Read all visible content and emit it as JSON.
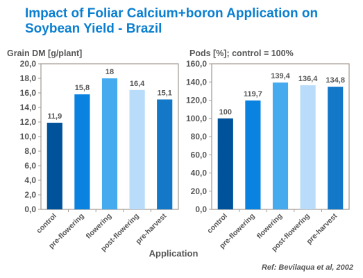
{
  "title_line1": "Impact of Foliar Calcium+boron Application on",
  "title_line2": "Soybean Yield - Brazil",
  "x_axis_title": "Application",
  "reference": "Ref: Bevilaqua et al, 2002",
  "colors": {
    "title": "#0a7fd0",
    "axis_text": "#555555",
    "frame": "#a09890",
    "bars": [
      "#00529b",
      "#0a82e0",
      "#45aaee",
      "#b8dcfa",
      "#1478c8"
    ]
  },
  "chart_data": [
    {
      "type": "bar",
      "title": "Grain DM [g/plant]",
      "categories": [
        "control",
        "pre-flowering",
        "flowering",
        "post-flowering",
        "pre-harvest"
      ],
      "values": [
        11.9,
        15.8,
        18,
        16.4,
        15.1
      ],
      "value_labels": [
        "11,9",
        "15,8",
        "18",
        "16,4",
        "15,1"
      ],
      "ylim": [
        0,
        20
      ],
      "yticks": [
        "0,0",
        "2,0",
        "4,0",
        "6,0",
        "8,0",
        "10,0",
        "12,0",
        "14,0",
        "16,0",
        "18,0",
        "20,0"
      ],
      "ytick_values": [
        0,
        2,
        4,
        6,
        8,
        10,
        12,
        14,
        16,
        18,
        20
      ],
      "xlabel": "Application",
      "grid": false,
      "legend": "none"
    },
    {
      "type": "bar",
      "title": "Pods [%]; control = 100%",
      "categories": [
        "control",
        "pre-flowering",
        "flowering",
        "post-flowering",
        "pre-harvest"
      ],
      "values": [
        100,
        119.7,
        139.4,
        136.4,
        134.8
      ],
      "value_labels": [
        "100",
        "119,7",
        "139,4",
        "136,4",
        "134,8"
      ],
      "ylim": [
        0,
        160
      ],
      "yticks": [
        "0,0",
        "20,0",
        "40,0",
        "60,0",
        "80,0",
        "100,0",
        "120,0",
        "140,0",
        "160,0"
      ],
      "ytick_values": [
        0,
        20,
        40,
        60,
        80,
        100,
        120,
        140,
        160
      ],
      "xlabel": "Application",
      "grid": false,
      "legend": "none"
    }
  ]
}
